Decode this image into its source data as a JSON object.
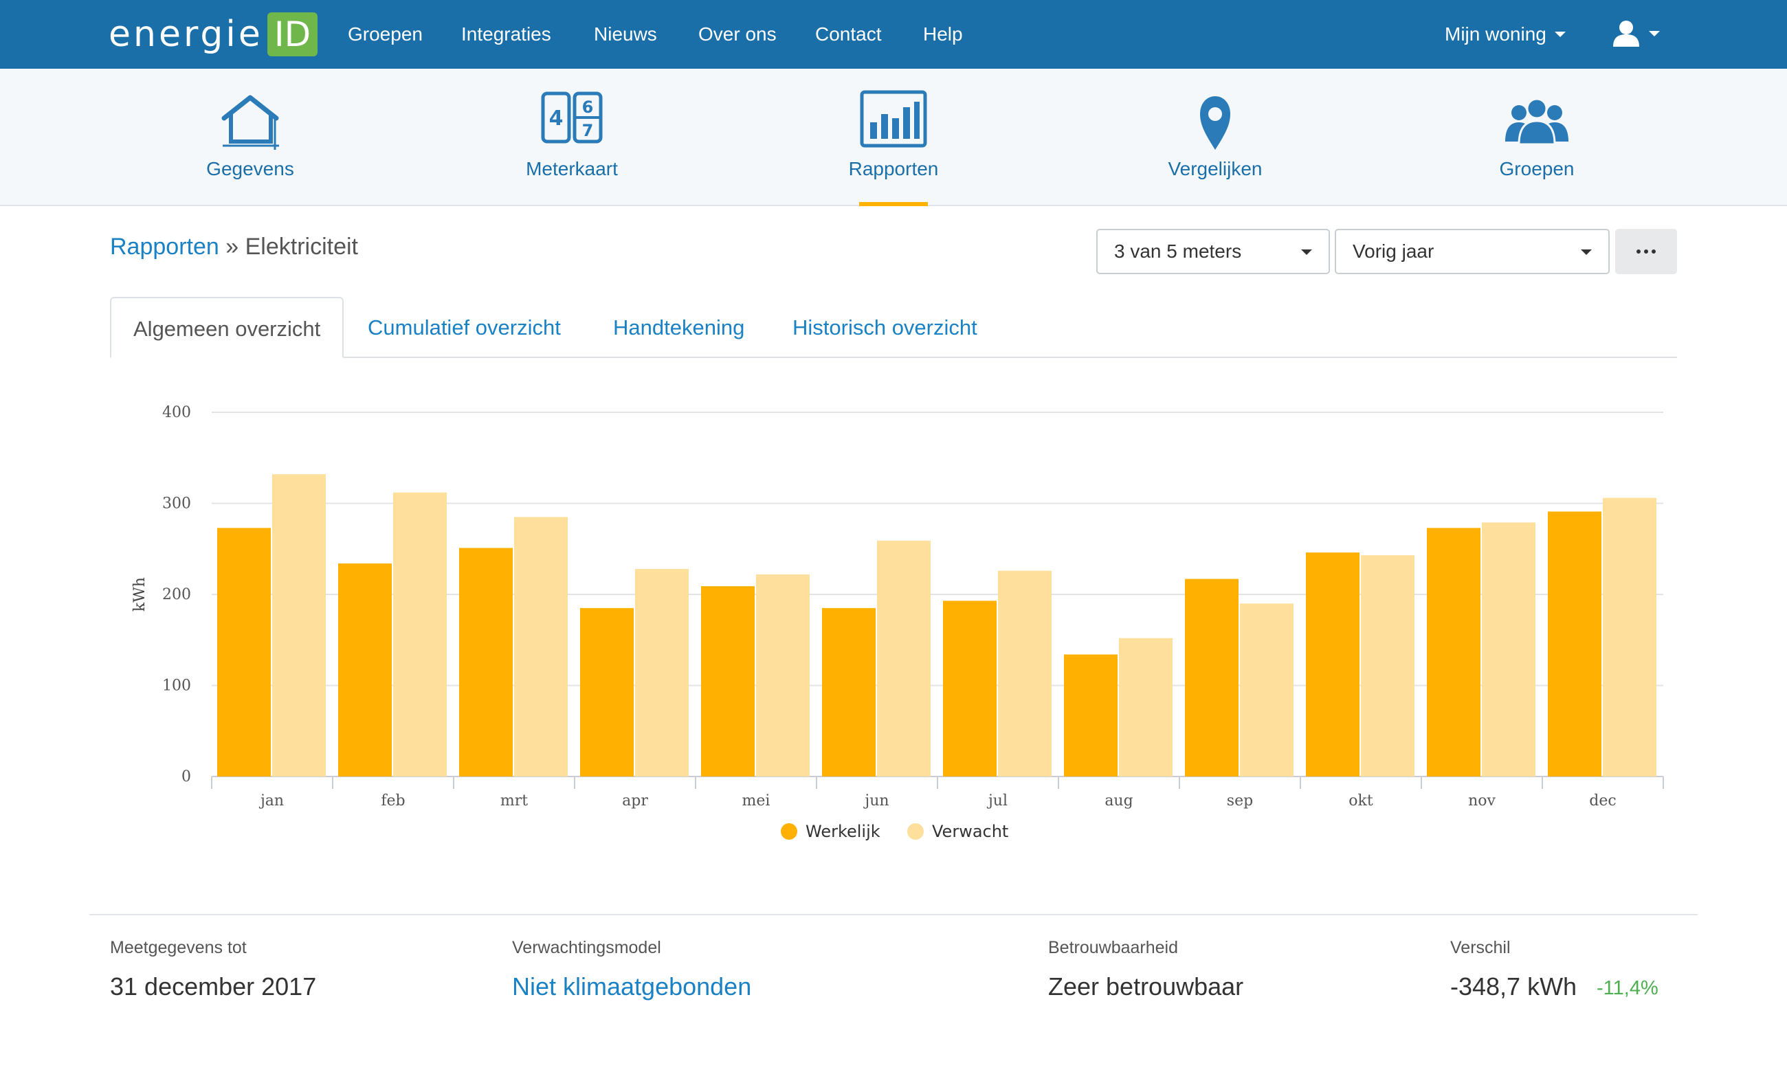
{
  "header": {
    "logo_text": "energie",
    "logo_badge": "ID",
    "nav": [
      "Groepen",
      "Integraties",
      "Nieuws",
      "Over ons",
      "Contact",
      "Help"
    ],
    "home_menu": "Mijn woning",
    "user_icon": "user-icon"
  },
  "subnav": {
    "items": [
      {
        "label": "Gegevens",
        "icon": "house-icon"
      },
      {
        "label": "Meterkaart",
        "icon": "meter-counter-icon"
      },
      {
        "label": "Rapporten",
        "icon": "bar-chart-icon",
        "active": true
      },
      {
        "label": "Vergelijken",
        "icon": "map-pin-icon"
      },
      {
        "label": "Groepen",
        "icon": "people-icon"
      }
    ]
  },
  "breadcrumb": {
    "parent": "Rapporten",
    "separator": "»",
    "current": "Elektriciteit"
  },
  "controls": {
    "meters_select": "3 van 5 meters",
    "period_select": "Vorig jaar",
    "more_icon": "ellipsis-icon"
  },
  "tabs": [
    {
      "label": "Algemeen overzicht",
      "active": true
    },
    {
      "label": "Cumulatief overzicht"
    },
    {
      "label": "Handtekening"
    },
    {
      "label": "Historisch overzicht"
    }
  ],
  "chart_data": {
    "type": "bar",
    "categories": [
      "jan",
      "feb",
      "mrt",
      "apr",
      "mei",
      "jun",
      "jul",
      "aug",
      "sep",
      "okt",
      "nov",
      "dec"
    ],
    "series": [
      {
        "name": "Werkelijk",
        "color": "#ffb000",
        "values": [
          273,
          234,
          251,
          185,
          209,
          185,
          193,
          134,
          217,
          246,
          273,
          291
        ]
      },
      {
        "name": "Verwacht",
        "color": "#fee09c",
        "values": [
          332,
          312,
          285,
          228,
          222,
          259,
          226,
          152,
          190,
          243,
          279,
          306
        ]
      }
    ],
    "title": "",
    "xlabel": "",
    "ylabel": "kWh",
    "ylim": [
      0,
      400
    ],
    "yticks": [
      "0",
      "100",
      "200",
      "300",
      "400"
    ],
    "grid": true,
    "legend": "bottom-center"
  },
  "stats": {
    "measured_label": "Meetgegevens tot",
    "measured_value": "31 december 2017",
    "model_label": "Verwachtingsmodel",
    "model_value": "Niet klimaatgebonden",
    "reliability_label": "Betrouwbaarheid",
    "reliability_value": "Zeer betrouwbaar",
    "diff_label": "Verschil",
    "diff_value": "-348,7 kWh",
    "diff_pct": "-11,4%",
    "diff_pct_color": "#4caf50"
  }
}
